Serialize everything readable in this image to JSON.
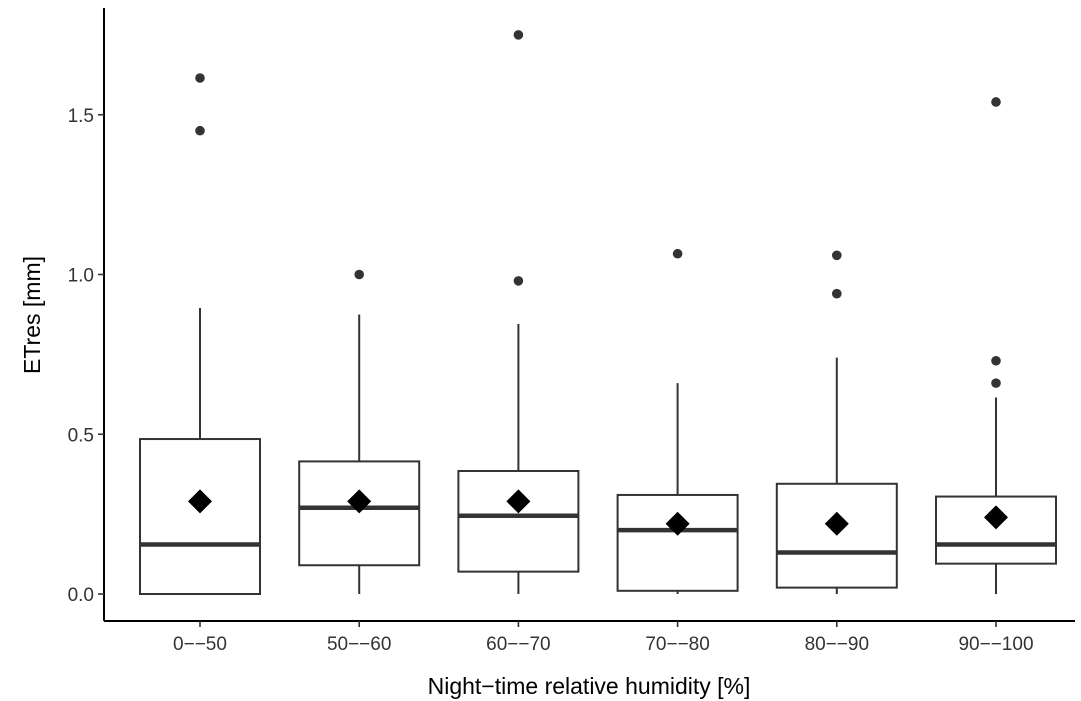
{
  "chart_data": {
    "type": "boxplot",
    "title": "",
    "xlabel": "Night−time relative humidity [%]",
    "ylabel": "ETres [mm]",
    "ylim": [
      -0.08,
      1.85
    ],
    "yticks": [
      0.0,
      0.5,
      1.0,
      1.5
    ],
    "ytick_labels": [
      "0.0",
      "0.5",
      "1.0",
      "1.5"
    ],
    "grid": false,
    "legend": "none",
    "categories": [
      "0−−50",
      "50−−60",
      "60−−70",
      "70−−80",
      "80−−90",
      "90−−100"
    ],
    "boxes": [
      {
        "q1": 0.0,
        "median": 0.155,
        "q3": 0.485,
        "whisker_low": 0.0,
        "whisker_high": 0.895,
        "mean": 0.29,
        "outliers": [
          1.45,
          1.615
        ]
      },
      {
        "q1": 0.09,
        "median": 0.27,
        "q3": 0.415,
        "whisker_low": 0.0,
        "whisker_high": 0.875,
        "mean": 0.29,
        "outliers": [
          1.0
        ]
      },
      {
        "q1": 0.07,
        "median": 0.245,
        "q3": 0.385,
        "whisker_low": 0.0,
        "whisker_high": 0.845,
        "mean": 0.29,
        "outliers": [
          0.98,
          1.75
        ]
      },
      {
        "q1": 0.01,
        "median": 0.2,
        "q3": 0.31,
        "whisker_low": 0.0,
        "whisker_high": 0.66,
        "mean": 0.22,
        "outliers": [
          1.065
        ]
      },
      {
        "q1": 0.02,
        "median": 0.13,
        "q3": 0.345,
        "whisker_low": 0.0,
        "whisker_high": 0.74,
        "mean": 0.22,
        "outliers": [
          0.94,
          1.06
        ]
      },
      {
        "q1": 0.095,
        "median": 0.155,
        "q3": 0.305,
        "whisker_low": 0.0,
        "whisker_high": 0.615,
        "mean": 0.24,
        "outliers": [
          0.66,
          0.73,
          1.54
        ]
      }
    ],
    "colors": {
      "box_line": "#333333",
      "box_fill": "#ffffff",
      "mean_marker": "#000000",
      "outlier": "#333333"
    }
  }
}
